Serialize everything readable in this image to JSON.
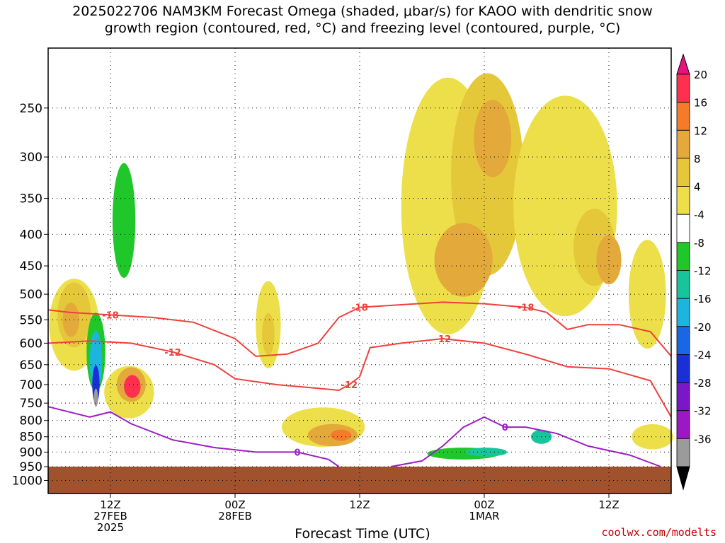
{
  "title": {
    "line1": "2025022706 NAM3KM Forecast Omega (shaded, μbar/s) for KAOO with dendritic snow",
    "line2": "growth region (contoured, red, °C) and freezing level (contoured, purple, °C)"
  },
  "credit": "coolwx.com/modelts",
  "chart_data": {
    "type": "heatmap",
    "xlabel": "Forecast Time (UTC)",
    "ylabel": "",
    "x_ticks": [
      {
        "label": "12Z",
        "sub1": "27FEB",
        "sub2": "2025",
        "hour": 12
      },
      {
        "label": "00Z",
        "sub1": "28FEB",
        "sub2": "",
        "hour": 24
      },
      {
        "label": "12Z",
        "sub1": "",
        "sub2": "",
        "hour": 36
      },
      {
        "label": "00Z",
        "sub1": "1MAR",
        "sub2": "",
        "hour": 48
      },
      {
        "label": "12Z",
        "sub1": "",
        "sub2": "",
        "hour": 60
      }
    ],
    "xlim_hours": [
      6,
      66
    ],
    "y_scale": "log-pressure, reversed",
    "y_ticks": [
      250,
      300,
      350,
      400,
      450,
      500,
      550,
      600,
      650,
      700,
      750,
      800,
      850,
      900,
      950,
      1000
    ],
    "ylim_hpa": [
      200,
      1050
    ],
    "ground_level_hpa": 950,
    "grid": true,
    "colorbar": {
      "labels": [
        "20",
        "16",
        "12",
        "8",
        "4",
        "-4",
        "-8",
        "-12",
        "-16",
        "-20",
        "-24",
        "-28",
        "-32",
        "-36"
      ],
      "colors": [
        "#ff2f4f",
        "#f37b29",
        "#e3a93a",
        "#e5c73a",
        "#ecdf4a",
        "#ffffff",
        "#1fc72b",
        "#18c49a",
        "#1cb5dd",
        "#1a67e6",
        "#1a2fd5",
        "#7a18c9",
        "#9c18c4",
        "#9b9b9b"
      ],
      "top_arrow_color": "#e8137e",
      "bottom_arrow_color": "#000000"
    },
    "contours": {
      "dendritic": [
        {
          "label": "-18",
          "color": "#f0403c",
          "points": [
            [
              6,
              530
            ],
            [
              8,
              535
            ],
            [
              12,
              540
            ],
            [
              16,
              545
            ],
            [
              20,
              555
            ],
            [
              24,
              590
            ],
            [
              26,
              630
            ],
            [
              29,
              625
            ],
            [
              32,
              600
            ],
            [
              34,
              545
            ],
            [
              36,
              525
            ],
            [
              40,
              520
            ],
            [
              44,
              515
            ],
            [
              48,
              518
            ],
            [
              52,
              525
            ],
            [
              54,
              535
            ],
            [
              56,
              570
            ],
            [
              58,
              560
            ],
            [
              61,
              560
            ],
            [
              64,
              575
            ],
            [
              66,
              630
            ]
          ]
        },
        {
          "label": "-12",
          "color": "#f0403c",
          "points": [
            [
              6,
              600
            ],
            [
              10,
              595
            ],
            [
              14,
              600
            ],
            [
              18,
              620
            ],
            [
              22,
              650
            ],
            [
              24,
              685
            ],
            [
              28,
              700
            ],
            [
              32,
              710
            ],
            [
              34,
              715
            ],
            [
              35,
              700
            ],
            [
              36,
              680
            ],
            [
              37,
              610
            ],
            [
              40,
              600
            ],
            [
              44,
              590
            ],
            [
              48,
              600
            ],
            [
              52,
              625
            ],
            [
              56,
              655
            ],
            [
              60,
              660
            ],
            [
              64,
              690
            ],
            [
              66,
              790
            ]
          ]
        }
      ],
      "freezing": [
        {
          "label": "0",
          "color": "#9b1fc4",
          "points": [
            [
              6,
              760
            ],
            [
              10,
              790
            ],
            [
              12,
              775
            ],
            [
              14,
              810
            ],
            [
              18,
              860
            ],
            [
              22,
              885
            ],
            [
              26,
              900
            ],
            [
              30,
              900
            ],
            [
              33,
              925
            ],
            [
              34,
              950
            ]
          ]
        },
        {
          "label": "0",
          "color": "#9b1fc4",
          "points": [
            [
              39,
              950
            ],
            [
              42,
              930
            ],
            [
              44,
              880
            ],
            [
              46,
              820
            ],
            [
              48,
              790
            ],
            [
              50,
              820
            ],
            [
              52,
              820
            ],
            [
              55,
              840
            ],
            [
              58,
              880
            ],
            [
              62,
              910
            ],
            [
              65,
              950
            ]
          ]
        }
      ]
    },
    "omega_cells": [
      {
        "hour": 8.5,
        "p": 560,
        "dh": 2.4,
        "dp": 190,
        "level": "4"
      },
      {
        "hour": 8.5,
        "p": 540,
        "dh": 1.6,
        "dp": 130,
        "level": "8"
      },
      {
        "hour": 8.2,
        "p": 550,
        "dh": 0.8,
        "dp": 70,
        "level": "12"
      },
      {
        "hour": 10.6,
        "p": 620,
        "dh": 0.9,
        "dp": 180,
        "level": "-8"
      },
      {
        "hour": 10.6,
        "p": 640,
        "dh": 0.6,
        "dp": 140,
        "level": "-16"
      },
      {
        "hour": 10.6,
        "p": 700,
        "dh": 0.35,
        "dp": 100,
        "level": "-24"
      },
      {
        "hour": 10.6,
        "p": 735,
        "dh": 0.2,
        "dp": 50,
        "level": "-36"
      },
      {
        "hour": 13.3,
        "p": 380,
        "dh": 1.1,
        "dp": 160,
        "level": "-8"
      },
      {
        "hour": 13.8,
        "p": 720,
        "dh": 2.4,
        "dp": 140,
        "level": "4"
      },
      {
        "hour": 14.0,
        "p": 700,
        "dh": 1.4,
        "dp": 90,
        "level": "12"
      },
      {
        "hour": 14.1,
        "p": 705,
        "dh": 0.8,
        "dp": 60,
        "level": "20"
      },
      {
        "hour": 27.2,
        "p": 560,
        "dh": 1.2,
        "dp": 180,
        "level": "4"
      },
      {
        "hour": 27.2,
        "p": 580,
        "dh": 0.6,
        "dp": 90,
        "level": "8"
      },
      {
        "hour": 32.5,
        "p": 820,
        "dh": 4.0,
        "dp": 120,
        "level": "4"
      },
      {
        "hour": 33.4,
        "p": 845,
        "dh": 2.4,
        "dp": 70,
        "level": "12"
      },
      {
        "hour": 34.2,
        "p": 845,
        "dh": 1.0,
        "dp": 35,
        "level": "16"
      },
      {
        "hour": 44.5,
        "p": 360,
        "dh": 4.5,
        "dp": 320,
        "level": "4"
      },
      {
        "hour": 48.3,
        "p": 320,
        "dh": 3.5,
        "dp": 230,
        "level": "8"
      },
      {
        "hour": 46.0,
        "p": 440,
        "dh": 2.8,
        "dp": 120,
        "level": "12"
      },
      {
        "hour": 48.8,
        "p": 280,
        "dh": 1.8,
        "dp": 80,
        "level": "12"
      },
      {
        "hour": 55.8,
        "p": 360,
        "dh": 5.0,
        "dp": 280,
        "level": "4"
      },
      {
        "hour": 58.6,
        "p": 420,
        "dh": 2.0,
        "dp": 120,
        "level": "8"
      },
      {
        "hour": 60.0,
        "p": 440,
        "dh": 1.2,
        "dp": 80,
        "level": "12"
      },
      {
        "hour": 63.7,
        "p": 500,
        "dh": 1.8,
        "dp": 200,
        "level": "4"
      },
      {
        "hour": 64.2,
        "p": 850,
        "dh": 2.0,
        "dp": 80,
        "level": "4"
      },
      {
        "hour": 47.0,
        "p": 880,
        "dh": 4.0,
        "dp": 60,
        "level": "-4"
      },
      {
        "hour": 46.0,
        "p": 905,
        "dh": 3.5,
        "dp": 40,
        "level": "-8"
      },
      {
        "hour": 48.2,
        "p": 900,
        "dh": 2.0,
        "dp": 30,
        "level": "-12"
      },
      {
        "hour": 53.5,
        "p": 850,
        "dh": 1.0,
        "dp": 45,
        "level": "-12"
      }
    ]
  }
}
